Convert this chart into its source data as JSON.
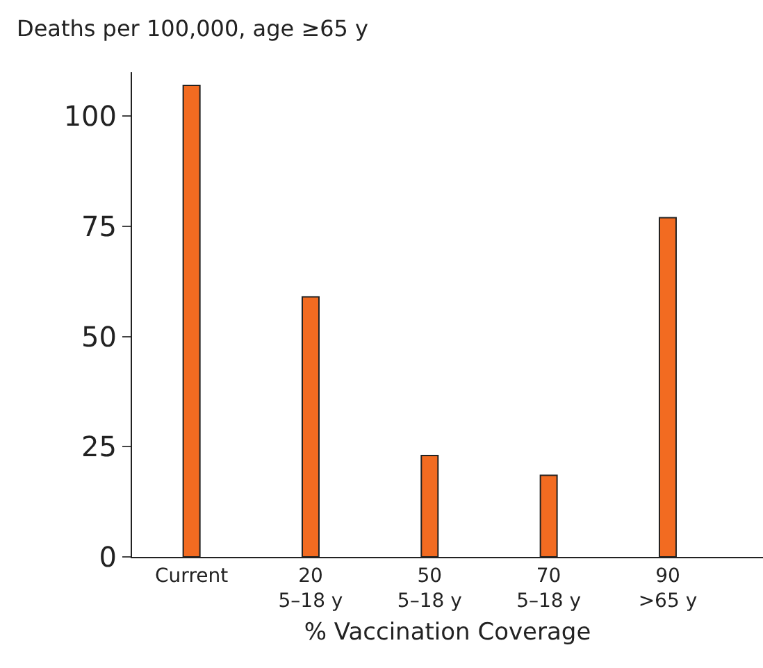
{
  "chart_data": {
    "type": "bar",
    "ylabel": "Deaths per 100,000, age ≥65 y",
    "xlabel": "% Vaccination Coverage",
    "categories": [
      "Current",
      "20\n5–18 y",
      "50\n5–18 y",
      "70\n5–18 y",
      "90\n>65 y"
    ],
    "values": [
      107,
      59,
      23,
      18.5,
      77
    ],
    "color": "#f26b21",
    "ylim": [
      0,
      110
    ],
    "yticks": [
      0,
      25,
      50,
      75,
      100
    ]
  }
}
